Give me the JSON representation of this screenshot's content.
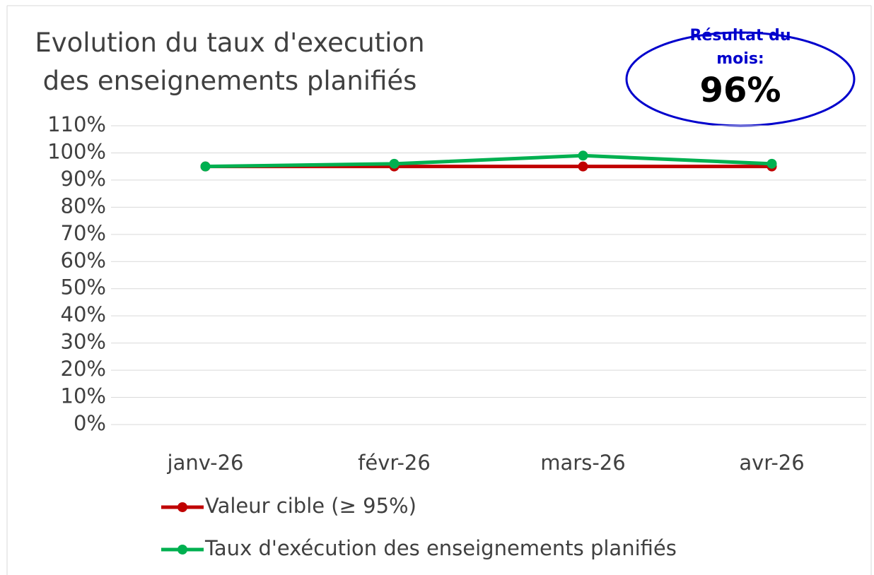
{
  "chart_data": {
    "type": "line",
    "title": "Evolution du taux d'execution des enseignements planifiés",
    "annotation": {
      "label": "Résultat du mois:",
      "value": "96%"
    },
    "categories": [
      "janv-26",
      "févr-26",
      "mars-26",
      "avr-26"
    ],
    "series": [
      {
        "name": "Valeur cible (≥ 95%)",
        "color": "#c00000",
        "values": [
          95,
          95,
          95,
          95
        ]
      },
      {
        "name": "Taux d'exécution des enseignements planifiés",
        "color": "#00b050",
        "values": [
          95,
          96,
          99,
          96
        ]
      }
    ],
    "ylim": [
      0,
      110
    ],
    "yticks": [
      {
        "value": 0,
        "label": "0%"
      },
      {
        "value": 10,
        "label": "10%"
      },
      {
        "value": 20,
        "label": "20%"
      },
      {
        "value": 30,
        "label": "30%"
      },
      {
        "value": 40,
        "label": "40%"
      },
      {
        "value": 50,
        "label": "50%"
      },
      {
        "value": 60,
        "label": "60%"
      },
      {
        "value": 70,
        "label": "70%"
      },
      {
        "value": 80,
        "label": "80%"
      },
      {
        "value": 90,
        "label": "90%"
      },
      {
        "value": 100,
        "label": "100%"
      },
      {
        "value": 110,
        "label": "110%"
      }
    ],
    "grid": true,
    "legend": "bottom"
  }
}
